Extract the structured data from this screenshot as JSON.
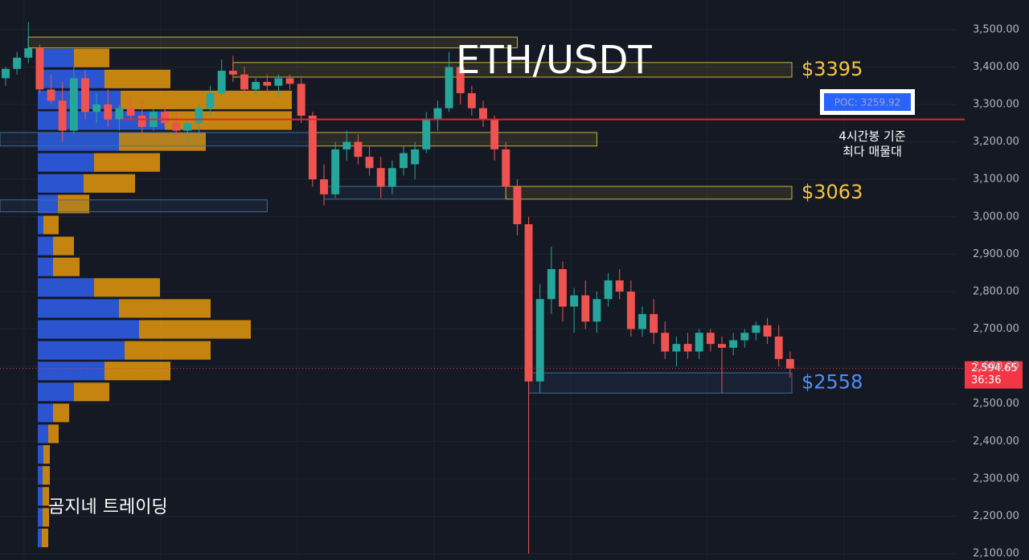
{
  "chart_data": {
    "type": "candlestick",
    "title": "ETH/USDT",
    "watermark": "곰지네 트레이딩",
    "ylim": [
      2083,
      3579
    ],
    "yticks": [
      {
        "value": 3500,
        "label": "3,500.00"
      },
      {
        "value": 3400,
        "label": "3,400.00"
      },
      {
        "value": 3300,
        "label": "3,300.00"
      },
      {
        "value": 3200,
        "label": "3,200.00"
      },
      {
        "value": 3100,
        "label": "3,100.00"
      },
      {
        "value": 3000,
        "label": "3,000.00"
      },
      {
        "value": 2900,
        "label": "2,900.00"
      },
      {
        "value": 2800,
        "label": "2,800.00"
      },
      {
        "value": 2700,
        "label": "2,700.00"
      },
      {
        "value": 2600,
        "label": "2,600.00"
      },
      {
        "value": 2500,
        "label": "2,500.00"
      },
      {
        "value": 2400,
        "label": "2,400.00"
      },
      {
        "value": 2300,
        "label": "2,300.00"
      },
      {
        "value": 2200,
        "label": "2,200.00"
      },
      {
        "value": 2100,
        "label": "2,100.00"
      }
    ],
    "grid": true,
    "up_color": "#26a69a",
    "down_color": "#ef5350",
    "open": [
      3370,
      3395,
      3425,
      3450,
      3340,
      3310,
      3230,
      3370,
      3280,
      3300,
      3260,
      3290,
      3270,
      3240,
      3280,
      3250,
      3230,
      3250,
      3290,
      3330,
      3390,
      3380,
      3340,
      3360,
      3350,
      3370,
      3355,
      3270,
      3100,
      3060,
      3180,
      3200,
      3160,
      3130,
      3080,
      3130,
      3140,
      3180,
      3260,
      3290,
      3400,
      3330,
      3290,
      3260,
      3180,
      3080,
      2980,
      2560,
      2780,
      2860,
      2760,
      2790,
      2720,
      2780,
      2830,
      2800,
      2700,
      2740,
      2690,
      2640,
      2660,
      2640,
      2690,
      2660,
      2650,
      2670,
      2690,
      2710,
      2680,
      2620
    ],
    "high": [
      3400,
      3440,
      3520,
      3460,
      3380,
      3360,
      3400,
      3390,
      3330,
      3340,
      3300,
      3320,
      3310,
      3290,
      3300,
      3280,
      3260,
      3300,
      3350,
      3420,
      3430,
      3400,
      3370,
      3380,
      3380,
      3380,
      3370,
      3280,
      3140,
      3200,
      3230,
      3220,
      3190,
      3160,
      3150,
      3190,
      3200,
      3280,
      3310,
      3440,
      3410,
      3350,
      3310,
      3270,
      3200,
      3100,
      3000,
      2820,
      2920,
      2880,
      2810,
      2830,
      2800,
      2850,
      2860,
      2830,
      2760,
      2780,
      2720,
      2680,
      2690,
      2700,
      2700,
      2680,
      2690,
      2700,
      2720,
      2730,
      2710,
      2640
    ],
    "low": [
      3350,
      3380,
      3410,
      3330,
      3300,
      3200,
      3220,
      3260,
      3250,
      3240,
      3230,
      3260,
      3220,
      3230,
      3240,
      3210,
      3200,
      3220,
      3270,
      3320,
      3360,
      3320,
      3320,
      3330,
      3320,
      3340,
      3250,
      3080,
      3030,
      3050,
      3150,
      3140,
      3110,
      3050,
      3060,
      3110,
      3100,
      3170,
      3230,
      3280,
      3300,
      3270,
      3240,
      3150,
      3060,
      2950,
      2100,
      2530,
      2740,
      2720,
      2690,
      2700,
      2690,
      2760,
      2780,
      2680,
      2680,
      2660,
      2620,
      2600,
      2620,
      2620,
      2640,
      2530,
      2630,
      2650,
      2670,
      2660,
      2600,
      2570
    ],
    "close": [
      3395,
      3425,
      3450,
      3340,
      3310,
      3230,
      3370,
      3280,
      3300,
      3260,
      3290,
      3270,
      3240,
      3280,
      3250,
      3230,
      3250,
      3290,
      3330,
      3390,
      3380,
      3340,
      3360,
      3350,
      3370,
      3355,
      3270,
      3100,
      3060,
      3180,
      3200,
      3160,
      3130,
      3080,
      3130,
      3170,
      3180,
      3260,
      3290,
      3400,
      3330,
      3290,
      3260,
      3180,
      3080,
      2980,
      2560,
      2780,
      2860,
      2760,
      2790,
      2720,
      2780,
      2830,
      2800,
      2700,
      2740,
      2690,
      2640,
      2660,
      2640,
      2690,
      2660,
      2650,
      2670,
      2690,
      2710,
      2680,
      2620,
      2594.65
    ],
    "last_price": {
      "value": 2594.65,
      "label": "2,594.65"
    },
    "countdown": "36:36",
    "poc": {
      "value": 3259.92,
      "label": "POC: 3259.92",
      "note": [
        "4시간봉 기준",
        "최다 매물대"
      ],
      "color": "#e0262b"
    },
    "zones": [
      {
        "low": 3451,
        "high": 3480,
        "start": 2,
        "end": 45,
        "color": "#c9b43a"
      },
      {
        "low": 3373,
        "high": 3412,
        "start": 20,
        "end": 70,
        "color": "#c9b43a",
        "label": "$3395",
        "label_color": "#f5c542"
      },
      {
        "low": 3189,
        "high": 3225,
        "start": 0,
        "end": 27,
        "color": "#3d6f9e"
      },
      {
        "low": 3189,
        "high": 3225,
        "start": 27,
        "end": 52,
        "color": "#c9b43a"
      },
      {
        "low": 3047,
        "high": 3081,
        "start": 28,
        "end": 44,
        "color": "#3d6f9e"
      },
      {
        "low": 3047,
        "high": 3081,
        "start": 44,
        "end": 70,
        "color": "#c9b43a",
        "label": "$3063",
        "label_color": "#f5c542"
      },
      {
        "low": 3013,
        "high": 3045,
        "start": 0,
        "end": 23,
        "color": "#3d6f9e"
      },
      {
        "low": 2529,
        "high": 2583,
        "start": 46,
        "end": 70,
        "color": "#3d6f9e",
        "label": "$2558",
        "label_color": "#4f8ff7"
      }
    ],
    "volume_profile": {
      "levels": [
        3424,
        3368,
        3312,
        3257,
        3201,
        3145,
        3089,
        3034,
        2978,
        2922,
        2866,
        2811,
        2755,
        2699,
        2643,
        2588,
        2532,
        2476,
        2420,
        2365,
        2309,
        2253,
        2197,
        2142
      ],
      "buy": [
        45,
        83,
        103,
        158,
        101,
        70,
        57,
        25,
        7,
        19,
        19,
        70,
        101,
        126,
        108,
        83,
        45,
        19,
        13,
        7,
        6,
        6,
        6,
        5
      ],
      "sell": [
        44,
        82,
        213,
        158,
        108,
        82,
        64,
        39,
        19,
        26,
        33,
        82,
        114,
        139,
        107,
        82,
        44,
        20,
        13,
        8,
        9,
        8,
        8,
        8
      ],
      "buy_color": "#2d5be3",
      "sell_color": "#d9900e",
      "xlim": [
        0,
        330
      ]
    }
  }
}
